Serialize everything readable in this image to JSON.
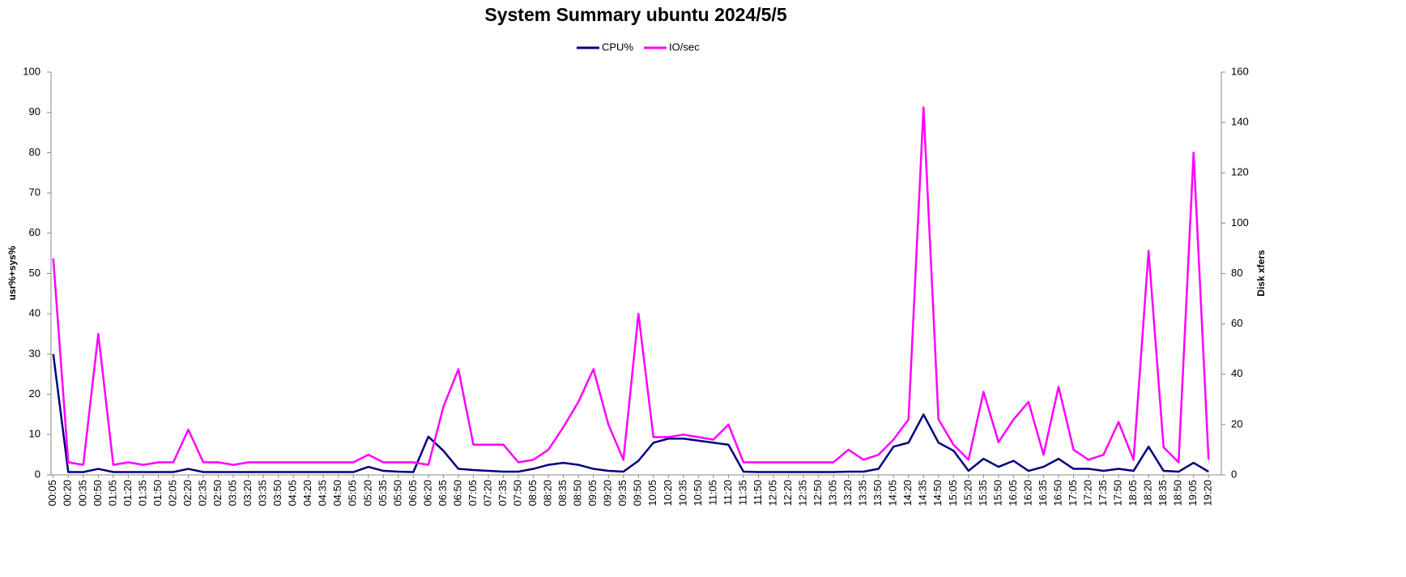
{
  "chart_data": {
    "type": "line",
    "title": "System Summary ubuntu  2024/5/5",
    "y_label": "usr%+sys%",
    "y2_label": "Disk xfers",
    "categories": [
      "00:05",
      "00:20",
      "00:35",
      "00:50",
      "01:05",
      "01:20",
      "01:35",
      "01:50",
      "02:05",
      "02:20",
      "02:35",
      "02:50",
      "03:05",
      "03:20",
      "03:35",
      "03:50",
      "04:05",
      "04:20",
      "04:35",
      "04:50",
      "05:05",
      "05:20",
      "05:35",
      "05:50",
      "06:05",
      "06:20",
      "06:35",
      "06:50",
      "07:05",
      "07:20",
      "07:35",
      "07:50",
      "08:05",
      "08:20",
      "08:35",
      "08:50",
      "09:05",
      "09:20",
      "09:35",
      "09:50",
      "10:05",
      "10:20",
      "10:35",
      "10:50",
      "11:05",
      "11:20",
      "11:35",
      "11:50",
      "12:05",
      "12:20",
      "12:35",
      "12:50",
      "13:05",
      "13:20",
      "13:35",
      "13:50",
      "14:05",
      "14:20",
      "14:35",
      "14:50",
      "15:05",
      "15:20",
      "15:35",
      "15:50",
      "16:05",
      "16:20",
      "16:35",
      "16:50",
      "17:05",
      "17:20",
      "17:35",
      "17:50",
      "18:05",
      "18:20",
      "18:35",
      "18:50",
      "19:05",
      "19:20"
    ],
    "series": [
      {
        "name": "CPU%",
        "color": "#000080",
        "values": [
          30,
          0.7,
          0.7,
          1.5,
          0.7,
          0.7,
          0.7,
          0.7,
          0.7,
          1.5,
          0.7,
          0.7,
          0.7,
          0.7,
          0.7,
          0.7,
          0.7,
          0.7,
          0.7,
          0.7,
          0.7,
          2,
          1,
          0.8,
          0.7,
          9.5,
          6,
          1.5,
          1.2,
          1,
          0.8,
          0.8,
          1.5,
          2.5,
          3,
          2.5,
          1.5,
          1,
          0.8,
          3.5,
          8,
          9,
          9,
          8.5,
          8,
          7.5,
          0.8,
          0.7,
          0.7,
          0.7,
          0.7,
          0.7,
          0.7,
          0.8,
          0.8,
          1.5,
          7,
          8,
          15,
          8,
          6,
          1,
          4,
          2,
          3.5,
          1,
          2,
          4,
          1.5,
          1.5,
          1,
          1.5,
          1,
          7,
          1,
          0.8,
          3,
          0.8
        ]
      },
      {
        "name": "IO/sec",
        "color": "#ff00ff",
        "axis": "y2",
        "values": [
          86,
          5,
          4,
          56,
          4,
          5,
          4,
          5,
          5,
          18,
          5,
          5,
          4,
          5,
          5,
          5,
          5,
          5,
          5,
          5,
          5,
          8,
          5,
          5,
          5,
          4,
          27,
          42,
          12,
          12,
          12,
          5,
          6,
          10,
          19,
          29,
          42,
          20,
          6,
          64,
          15,
          15,
          16,
          15,
          14,
          20,
          5,
          5,
          5,
          5,
          5,
          5,
          5,
          10,
          6,
          8,
          14,
          22,
          146,
          22,
          12,
          6,
          33,
          13,
          22,
          29,
          8,
          35,
          10,
          6,
          8,
          21,
          6,
          89,
          11,
          5,
          128,
          6
        ]
      }
    ],
    "ylim": [
      0,
      100
    ],
    "yticks": [
      0,
      10,
      20,
      30,
      40,
      50,
      60,
      70,
      80,
      90,
      100
    ],
    "y2lim": [
      0,
      160
    ],
    "y2ticks": [
      0,
      20,
      40,
      60,
      80,
      100,
      120,
      140,
      160
    ],
    "legend": "top"
  }
}
